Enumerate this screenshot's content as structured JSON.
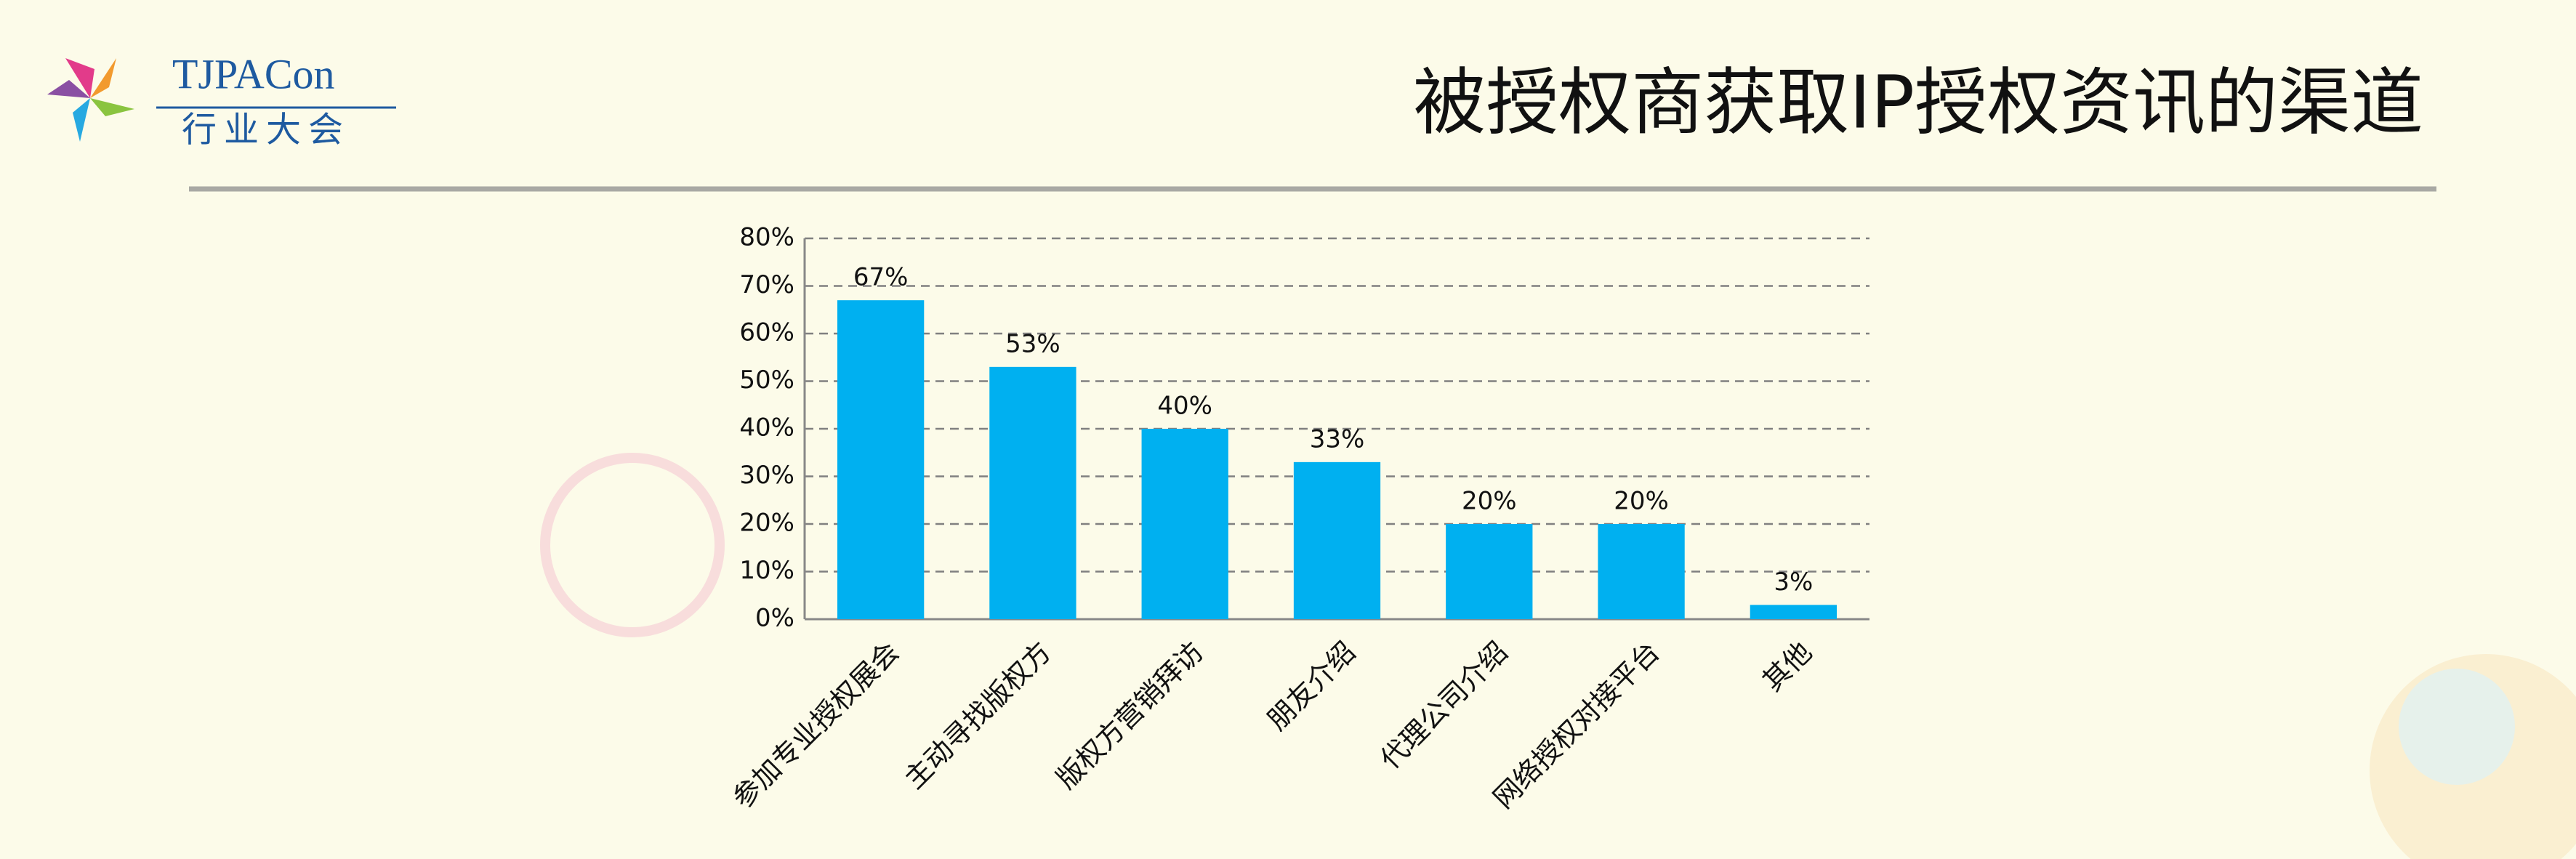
{
  "header": {
    "logo_name": "TJPACon",
    "logo_subtitle": "行业大会"
  },
  "chart_data": {
    "type": "bar",
    "title": "被授权商获取IP授权资讯的渠道",
    "categories": [
      "参加专业授权展会",
      "主动寻找版权方",
      "版权方营销拜访",
      "朋友介绍",
      "代理公司介绍",
      "网络授权对接平台",
      "其他"
    ],
    "values": [
      67,
      53,
      40,
      33,
      20,
      20,
      3
    ],
    "value_labels": [
      "67%",
      "53%",
      "40%",
      "33%",
      "20%",
      "20%",
      "3%"
    ],
    "color": "#00b0f0",
    "ylim": [
      0,
      80
    ],
    "yticks": [
      {
        "value": 0,
        "label": "0%"
      },
      {
        "value": 10,
        "label": "10%"
      },
      {
        "value": 20,
        "label": "20%"
      },
      {
        "value": 30,
        "label": "30%"
      },
      {
        "value": 40,
        "label": "40%"
      },
      {
        "value": 50,
        "label": "50%"
      },
      {
        "value": 60,
        "label": "60%"
      },
      {
        "value": 70,
        "label": "70%"
      },
      {
        "value": 80,
        "label": "80%"
      }
    ],
    "grid": true
  }
}
